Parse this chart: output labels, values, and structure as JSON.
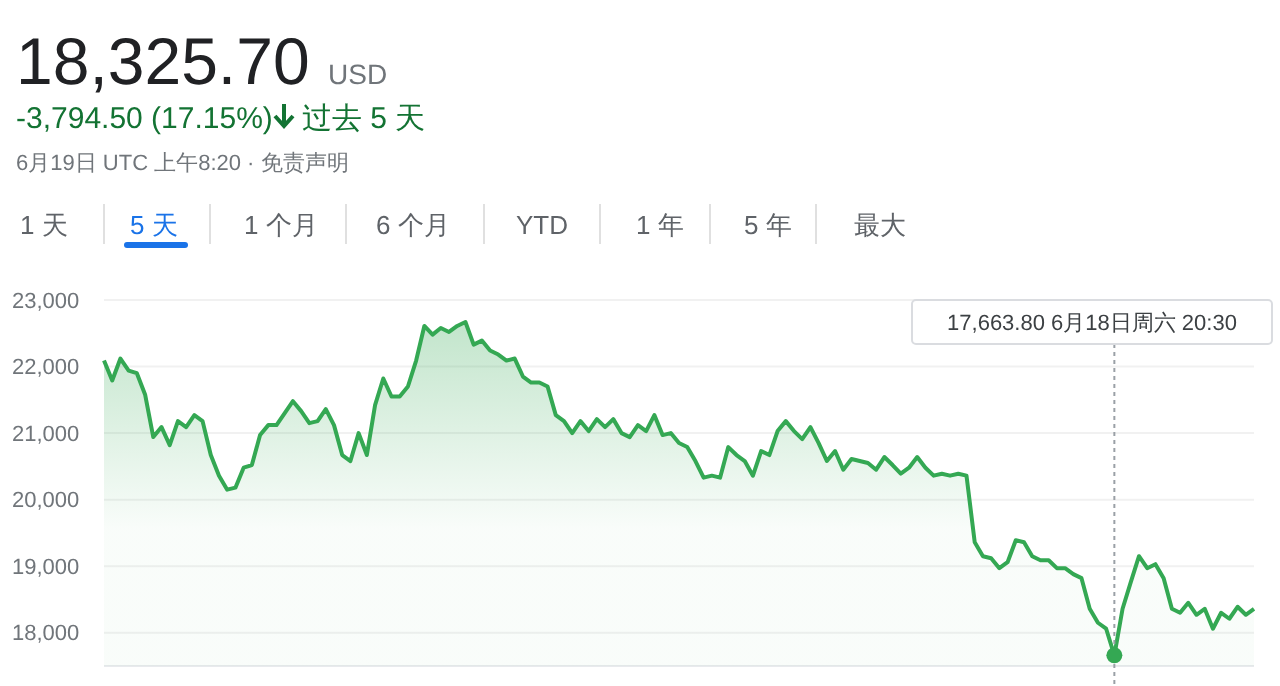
{
  "chart_data": {
    "type": "area",
    "title": "18,325.70",
    "annotations": [
      "USD",
      "-3,794.50 (17.15%)",
      "过去 5 天",
      "6月19日 UTC 上午8:20 · 免责声明",
      "1 天",
      "5 天",
      "1 个月",
      "6 个月",
      "YTD",
      "1 年",
      "5 年",
      "最大",
      "17,663.80 6月18日周六 20:30"
    ],
    "categories": [
      null,
      null,
      null,
      null,
      null,
      null,
      null,
      null,
      null,
      null,
      null,
      null,
      null,
      null,
      null,
      null,
      null,
      null,
      null,
      null,
      null,
      null,
      null,
      null,
      null,
      null,
      null,
      null,
      null,
      null,
      null,
      null,
      null,
      null,
      null,
      null,
      null,
      null,
      null,
      null,
      null,
      null,
      null,
      null,
      null,
      null,
      null,
      null,
      null,
      null,
      null,
      null,
      null,
      null,
      null,
      null,
      null,
      null,
      null,
      null,
      null,
      null,
      null,
      null,
      null,
      null,
      null,
      null,
      null,
      null,
      null,
      null,
      null,
      null,
      null,
      null,
      null,
      null,
      null,
      null,
      null,
      null,
      null,
      null,
      null,
      null,
      null,
      null,
      null,
      null,
      null,
      null,
      null,
      null,
      null,
      null,
      null,
      null,
      null,
      null,
      null,
      null,
      null,
      null,
      null,
      null,
      null,
      null,
      null,
      null,
      null,
      null,
      null,
      null,
      null,
      null,
      null,
      null,
      null,
      null,
      null,
      null,
      null,
      null,
      null,
      null,
      null,
      null,
      null,
      null,
      null,
      null,
      null,
      null,
      null,
      null,
      null,
      null,
      null,
      null,
      null
    ],
    "series": [
      {
        "color": "#34a853",
        "values": [
          22090,
          21790,
          22120,
          21940,
          21900,
          21580,
          20940,
          21090,
          20820,
          21180,
          21090,
          21270,
          21180,
          20670,
          20360,
          20150,
          20180,
          20480,
          20520,
          20970,
          21120,
          21120,
          21300,
          21480,
          21330,
          21150,
          21180,
          21360,
          21120,
          20670,
          20580,
          21000,
          20670,
          21420,
          21820,
          21550,
          21550,
          21700,
          22090,
          22610,
          22480,
          22580,
          22520,
          22610,
          22670,
          22330,
          22390,
          22240,
          22180,
          22090,
          22120,
          21850,
          21760,
          21760,
          21700,
          21270,
          21180,
          21000,
          21180,
          21030,
          21210,
          21090,
          21210,
          21000,
          20940,
          21120,
          21030,
          21270,
          20970,
          21000,
          20850,
          20790,
          20580,
          20330,
          20360,
          20330,
          20790,
          20670,
          20580,
          20360,
          20730,
          20670,
          21030,
          21180,
          21030,
          20910,
          21090,
          20850,
          20580,
          20730,
          20450,
          20610,
          20580,
          20550,
          20450,
          20640,
          20520,
          20390,
          20480,
          20640,
          20480,
          20360,
          20390,
          20360,
          20390,
          20360,
          19360,
          19150,
          19120,
          18970,
          19060,
          19390,
          19360,
          19150,
          19090,
          19090,
          18970,
          18970,
          18880,
          18820,
          18360,
          18150,
          18060,
          17660,
          18360,
          18760,
          19150,
          18970,
          19030,
          18820,
          18360,
          18300,
          18450,
          18270,
          18360,
          18060,
          18300,
          18210,
          18390,
          18270,
          18360
        ]
      }
    ],
    "ylim": [
      17500,
      23000
    ],
    "yticks": [
      {
        "value": 18000,
        "label": "18,000"
      },
      {
        "value": 19000,
        "label": "19,000"
      },
      {
        "value": 20000,
        "label": "20,000"
      },
      {
        "value": 21000,
        "label": "21,000"
      },
      {
        "value": 22000,
        "label": "22,000"
      },
      {
        "value": 23000,
        "label": "23,000"
      }
    ],
    "grid": "y",
    "marker": "none",
    "line_style": "solid"
  }
}
